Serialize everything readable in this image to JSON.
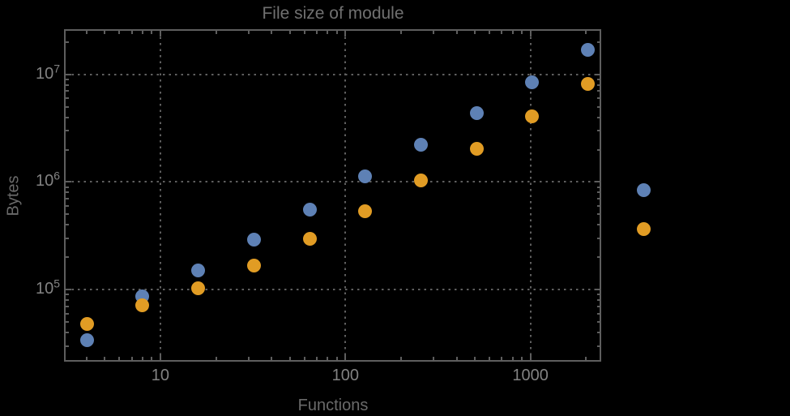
{
  "chart_data": {
    "type": "scatter",
    "title": "File size of module",
    "xlabel": "Functions",
    "ylabel": "Bytes",
    "x_scale": "log",
    "y_scale": "log",
    "xlim": [
      3.06,
      2377
    ],
    "ylim": [
      22230,
      25600000
    ],
    "x_major_ticks": [
      10,
      100,
      1000
    ],
    "x_major_tick_labels": [
      "10",
      "100",
      "1000"
    ],
    "y_major_ticks": [
      100000,
      1000000,
      10000000
    ],
    "y_tick_base": "10",
    "y_tick_exponents": [
      "5",
      "6",
      "7"
    ],
    "grid": "dotted lines at major ticks, frame on all four sides with inward minor ticks",
    "legend": "none",
    "note": "points at x=4096 are rendered outside the plot frame (no plot-range clipping)",
    "series": [
      {
        "name": "series-blue",
        "color": "#5e81b5",
        "x": [
          4,
          8,
          16,
          32,
          64,
          128,
          256,
          512,
          1024,
          2048,
          4096
        ],
        "y": [
          34200,
          86000,
          150000,
          290000,
          555000,
          1120000,
          2210000,
          4350000,
          8450000,
          17000000,
          838000
        ]
      },
      {
        "name": "series-orange",
        "color": "#e19c24",
        "x": [
          4,
          8,
          16,
          32,
          64,
          128,
          256,
          512,
          1024,
          2048,
          4096
        ],
        "y": [
          48500,
          71100,
          104000,
          169000,
          295000,
          538000,
          1040000,
          2030000,
          4090000,
          8220000,
          368000
        ]
      }
    ]
  },
  "colors": {
    "background": "#000000",
    "frame": "#5e5e5e",
    "gridline": "#5f5f5f",
    "title_text": "#707070",
    "axis_label_text": "#6a6a6a",
    "tick_label_text": "#828282",
    "series_blue": "#5e81b5",
    "series_orange": "#e19c24"
  }
}
